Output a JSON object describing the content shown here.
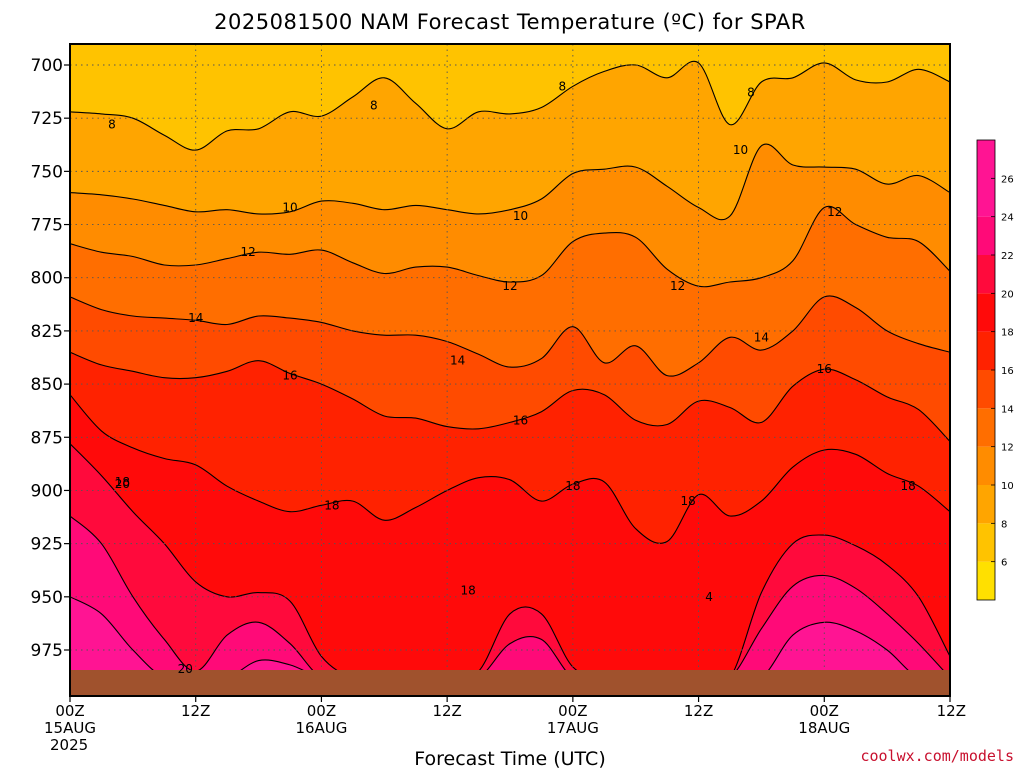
{
  "colors": {
    "bands": [
      "#ffe000",
      "#ffc300",
      "#ffa500",
      "#ff8c00",
      "#ff6e00",
      "#ff4b00",
      "#ff2200",
      "#ff0a0a",
      "#ff0a3c",
      "#ff0a78",
      "#ff1493"
    ],
    "ground": "#a0522d",
    "credit": "#c8102e"
  },
  "chart_data": {
    "type": "contour",
    "title": "2025081500 NAM Forecast Temperature (ºC) for SPAR",
    "xlabel": "Forecast Time (UTC)",
    "ylabel": "",
    "y_scale": "pressure (hPa), inverted",
    "ylim": [
      988,
      690
    ],
    "y_ticks": [
      700,
      725,
      750,
      775,
      800,
      825,
      850,
      875,
      900,
      925,
      950,
      975
    ],
    "xlim": [
      0,
      84
    ],
    "x_ticks": [
      {
        "h": 0,
        "lines": [
          "00Z",
          "15AUG",
          "2025"
        ]
      },
      {
        "h": 12,
        "lines": [
          "12Z"
        ]
      },
      {
        "h": 24,
        "lines": [
          "00Z",
          "16AUG"
        ]
      },
      {
        "h": 36,
        "lines": [
          "12Z"
        ]
      },
      {
        "h": 48,
        "lines": [
          "00Z",
          "17AUG"
        ]
      },
      {
        "h": 60,
        "lines": [
          "12Z"
        ]
      },
      {
        "h": 72,
        "lines": [
          "00Z",
          "18AUG"
        ]
      },
      {
        "h": 84,
        "lines": [
          "12Z"
        ]
      }
    ],
    "grid": true,
    "colorbar": {
      "ticks": [
        6,
        8,
        10,
        12,
        14,
        16,
        18,
        20,
        22,
        24,
        26
      ],
      "band_levels": [
        4,
        6,
        8,
        10,
        12,
        14,
        16,
        18,
        20,
        22,
        24,
        28
      ]
    },
    "isotherms": [
      {
        "level": 8,
        "x": [
          0,
          3,
          6,
          9,
          12,
          15,
          18,
          21,
          24,
          27,
          30,
          33,
          36,
          39,
          42,
          45,
          48,
          51,
          54,
          57,
          60,
          63,
          66,
          69,
          72,
          75,
          78,
          81,
          84
        ],
        "p": [
          722,
          723,
          725,
          733,
          740,
          731,
          730,
          722,
          724,
          715,
          706,
          718,
          730,
          722,
          723,
          720,
          710,
          703,
          700,
          706,
          699,
          728,
          708,
          706,
          699,
          707,
          708,
          702,
          708
        ]
      },
      {
        "level": 10,
        "x": [
          0,
          3,
          6,
          9,
          12,
          15,
          18,
          21,
          24,
          27,
          30,
          33,
          36,
          39,
          42,
          45,
          48,
          51,
          54,
          57,
          60,
          63,
          66,
          69,
          72,
          75,
          78,
          81,
          84
        ],
        "p": [
          760,
          761,
          763,
          766,
          769,
          768,
          770,
          769,
          764,
          765,
          768,
          766,
          768,
          770,
          768,
          763,
          751,
          749,
          748,
          757,
          767,
          771,
          738,
          747,
          748,
          749,
          756,
          752,
          760
        ]
      },
      {
        "level": 12,
        "x": [
          0,
          3,
          6,
          9,
          12,
          15,
          18,
          21,
          24,
          27,
          30,
          33,
          36,
          39,
          42,
          45,
          48,
          51,
          54,
          57,
          60,
          63,
          66,
          69,
          72,
          75,
          78,
          81,
          84
        ],
        "p": [
          784,
          788,
          790,
          794,
          794,
          791,
          788,
          789,
          787,
          793,
          798,
          795,
          795,
          799,
          802,
          799,
          783,
          779,
          781,
          796,
          804,
          802,
          800,
          792,
          767,
          775,
          781,
          783,
          797
        ]
      },
      {
        "level": 14,
        "x": [
          0,
          3,
          6,
          9,
          12,
          15,
          18,
          21,
          24,
          27,
          30,
          33,
          36,
          39,
          42,
          45,
          48,
          51,
          54,
          57,
          60,
          63,
          66,
          69,
          72,
          75,
          78,
          81,
          84
        ],
        "p": [
          809,
          815,
          818,
          819,
          820,
          822,
          818,
          819,
          821,
          825,
          827,
          827,
          830,
          836,
          842,
          838,
          823,
          840,
          832,
          846,
          840,
          828,
          834,
          825,
          809,
          814,
          825,
          831,
          835
        ]
      },
      {
        "level": 16,
        "x": [
          0,
          3,
          6,
          9,
          12,
          15,
          18,
          21,
          24,
          27,
          30,
          33,
          36,
          39,
          42,
          45,
          48,
          51,
          54,
          57,
          60,
          63,
          66,
          69,
          72,
          75,
          78,
          81,
          84
        ],
        "p": [
          835,
          841,
          844,
          847,
          847,
          844,
          839,
          845,
          850,
          857,
          865,
          866,
          870,
          871,
          868,
          863,
          853,
          855,
          867,
          869,
          858,
          861,
          868,
          851,
          843,
          848,
          856,
          862,
          877
        ]
      },
      {
        "level": 18,
        "x": [
          0,
          3,
          6,
          9,
          12,
          15,
          18,
          21,
          24,
          27,
          30,
          33,
          36,
          39,
          42,
          45,
          48,
          51,
          54,
          57,
          60,
          63,
          66,
          69,
          72,
          75,
          78,
          81,
          84
        ],
        "p": [
          855,
          872,
          880,
          885,
          888,
          898,
          905,
          910,
          907,
          905,
          914,
          908,
          900,
          894,
          895,
          905,
          897,
          896,
          918,
          924,
          902,
          912,
          905,
          889,
          881,
          883,
          892,
          898,
          910
        ]
      },
      {
        "level": 20,
        "x": [
          0,
          3,
          6,
          9,
          12,
          15,
          18,
          21,
          24,
          27,
          30,
          33,
          36,
          39,
          42,
          45,
          48,
          51,
          54,
          57,
          60,
          63,
          66,
          69,
          72,
          75,
          78,
          81,
          84
        ],
        "p": [
          878,
          893,
          910,
          925,
          943,
          950,
          948,
          952,
          978,
          988,
          988,
          988,
          988,
          985,
          958,
          958,
          983,
          988,
          988,
          988,
          988,
          988,
          948,
          925,
          921,
          926,
          935,
          950,
          978
        ]
      },
      {
        "level": 22,
        "x": [
          0,
          3,
          6,
          9,
          12,
          15,
          18,
          21,
          24,
          27,
          30,
          33,
          36,
          39,
          42,
          45,
          48,
          51,
          54,
          57,
          60,
          63,
          66,
          69,
          72,
          75,
          78,
          81,
          84
        ],
        "p": [
          912,
          925,
          950,
          970,
          985,
          968,
          962,
          972,
          988,
          988,
          988,
          988,
          988,
          988,
          972,
          970,
          988,
          988,
          988,
          988,
          988,
          988,
          965,
          945,
          940,
          946,
          958,
          972,
          988
        ]
      },
      {
        "level": 24,
        "x": [
          0,
          3,
          6,
          9,
          12,
          15,
          18,
          21,
          24,
          27,
          30,
          33,
          36,
          39,
          42,
          45,
          48,
          51,
          54,
          57,
          60,
          63,
          66,
          69,
          72,
          75,
          78,
          81,
          84
        ],
        "p": [
          950,
          958,
          975,
          988,
          988,
          988,
          980,
          982,
          988,
          988,
          988,
          988,
          988,
          988,
          988,
          986,
          988,
          988,
          988,
          988,
          988,
          988,
          988,
          968,
          962,
          966,
          975,
          988,
          988
        ]
      }
    ],
    "contour_labels": [
      {
        "t": "8",
        "h": 4,
        "p": 728
      },
      {
        "t": "8",
        "h": 29,
        "p": 719
      },
      {
        "t": "8",
        "h": 47,
        "p": 710
      },
      {
        "t": "8",
        "h": 65,
        "p": 713
      },
      {
        "t": "10",
        "h": 21,
        "p": 767
      },
      {
        "t": "10",
        "h": 43,
        "p": 771
      },
      {
        "t": "10",
        "h": 64,
        "p": 740
      },
      {
        "t": "12",
        "h": 17,
        "p": 788
      },
      {
        "t": "12",
        "h": 42,
        "p": 804
      },
      {
        "t": "12",
        "h": 58,
        "p": 804
      },
      {
        "t": "12",
        "h": 73,
        "p": 769
      },
      {
        "t": "14",
        "h": 12,
        "p": 819
      },
      {
        "t": "14",
        "h": 37,
        "p": 839
      },
      {
        "t": "14",
        "h": 66,
        "p": 828
      },
      {
        "t": "16",
        "h": 21,
        "p": 846
      },
      {
        "t": "16",
        "h": 43,
        "p": 867
      },
      {
        "t": "16",
        "h": 72,
        "p": 843
      },
      {
        "t": "18",
        "h": 5,
        "p": 896
      },
      {
        "t": "20",
        "h": 5,
        "p": 897
      },
      {
        "t": "18",
        "h": 25,
        "p": 907
      },
      {
        "t": "18",
        "h": 48,
        "p": 898
      },
      {
        "t": "18",
        "h": 59,
        "p": 905
      },
      {
        "t": "18",
        "h": 38,
        "p": 947
      },
      {
        "t": "18",
        "h": 80,
        "p": 898
      },
      {
        "t": "20",
        "h": 11,
        "p": 984
      },
      {
        "t": "4",
        "h": 61,
        "p": 950
      }
    ]
  },
  "credit": "coolwx.com/models"
}
